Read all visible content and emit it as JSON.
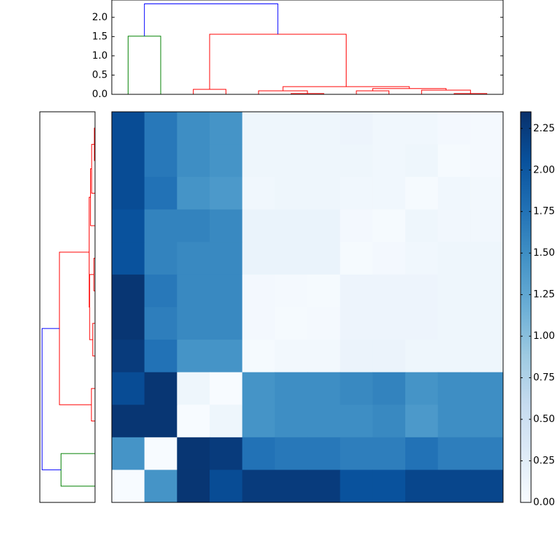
{
  "chart_data": [
    {
      "type": "dendrogram",
      "orientation": "top",
      "xlim": [
        0,
        120
      ],
      "ylim": [
        0,
        2.45
      ],
      "yticks": [
        {
          "value": 0,
          "label": "0.0"
        },
        {
          "value": 0.5,
          "label": "0.5"
        },
        {
          "value": 1,
          "label": "1.0"
        },
        {
          "value": 1.5,
          "label": "1.5"
        },
        {
          "value": 2,
          "label": "2.0"
        }
      ],
      "icoord": [
        [
          5,
          5,
          15,
          15
        ],
        [
          25,
          25,
          35,
          35
        ],
        [
          55,
          55,
          65,
          65
        ],
        [
          45,
          45,
          60,
          60
        ],
        [
          75,
          75,
          85,
          85
        ],
        [
          105,
          105,
          115,
          115
        ],
        [
          95,
          95,
          110,
          110
        ],
        [
          80,
          80,
          102.5,
          102.5
        ],
        [
          52.5,
          52.5,
          91.25,
          91.25
        ],
        [
          30,
          30,
          71.875,
          71.875
        ],
        [
          10,
          10,
          50.9375,
          50.9375
        ]
      ],
      "dcoord": [
        [
          0,
          1.51,
          1.51,
          0
        ],
        [
          0,
          0.13,
          0.13,
          0
        ],
        [
          0,
          0.02,
          0.02,
          0
        ],
        [
          0,
          0.09,
          0.09,
          0.02
        ],
        [
          0,
          0.09,
          0.09,
          0
        ],
        [
          0,
          0.02,
          0.02,
          0
        ],
        [
          0,
          0.11,
          0.11,
          0.02
        ],
        [
          0.09,
          0.15,
          0.15,
          0.11
        ],
        [
          0.09,
          0.2,
          0.2,
          0.15
        ],
        [
          0.13,
          1.56,
          1.56,
          0.2
        ],
        [
          1.51,
          2.35,
          2.35,
          1.56
        ]
      ],
      "link_colors": [
        "#008000",
        "#ff0000",
        "#ff0000",
        "#ff0000",
        "#ff0000",
        "#ff0000",
        "#ff0000",
        "#ff0000",
        "#ff0000",
        "#ff0000",
        "#0000ff"
      ]
    },
    {
      "type": "dendrogram",
      "orientation": "left",
      "ylim": [
        0,
        120
      ],
      "xlim": [
        2.45,
        0
      ],
      "icoord": [
        [
          5,
          5,
          15,
          15
        ],
        [
          25,
          25,
          35,
          35
        ],
        [
          45,
          45,
          55,
          55
        ],
        [
          65,
          65,
          75,
          75
        ],
        [
          50,
          50,
          70,
          70
        ],
        [
          105,
          105,
          115,
          115
        ],
        [
          95,
          95,
          110,
          110
        ],
        [
          85,
          85,
          102.5,
          102.5
        ],
        [
          60,
          60,
          93.75,
          93.75
        ],
        [
          30,
          30,
          76.875,
          76.875
        ],
        [
          10,
          10,
          53.4375,
          53.4375
        ]
      ],
      "dcoord": [
        [
          0,
          1.51,
          1.51,
          0
        ],
        [
          0,
          0.16,
          0.16,
          0
        ],
        [
          0,
          0.1,
          0.1,
          0
        ],
        [
          0,
          0.05,
          0.05,
          0
        ],
        [
          0.1,
          0.24,
          0.24,
          0.05
        ],
        [
          0,
          0.03,
          0.03,
          0
        ],
        [
          0,
          0.15,
          0.15,
          0.03
        ],
        [
          0,
          0.2,
          0.2,
          0.15
        ],
        [
          0.24,
          0.26,
          0.26,
          0.2
        ],
        [
          0.16,
          1.58,
          1.58,
          0.26
        ],
        [
          1.51,
          2.35,
          2.35,
          1.58
        ]
      ],
      "link_colors": [
        "#008000",
        "#ff0000",
        "#ff0000",
        "#ff0000",
        "#ff0000",
        "#ff0000",
        "#ff0000",
        "#ff0000",
        "#ff0000",
        "#ff0000",
        "#0000ff"
      ]
    },
    {
      "type": "heatmap",
      "clim": [
        0,
        2.35
      ],
      "colormap": [
        "#f7fbff",
        "#deebf7",
        "#c6dbef",
        "#9ecae1",
        "#6baed6",
        "#4292c6",
        "#2171b5",
        "#08519c",
        "#08306b"
      ],
      "colorbar_ticks": [
        {
          "value": 0,
          "label": "0.00"
        },
        {
          "value": 0.25,
          "label": "0.25"
        },
        {
          "value": 0.5,
          "label": "0.50"
        },
        {
          "value": 0.75,
          "label": "0.75"
        },
        {
          "value": 1,
          "label": "1.00"
        },
        {
          "value": 1.25,
          "label": "1.25"
        },
        {
          "value": 1.5,
          "label": "1.50"
        },
        {
          "value": 1.75,
          "label": "1.75"
        },
        {
          "value": 2,
          "label": "2.00"
        },
        {
          "value": 2.25,
          "label": "2.25"
        }
      ],
      "values": [
        [
          2.1,
          1.7,
          1.5,
          1.45,
          0.1,
          0.1,
          0.1,
          0.12,
          0.08,
          0.08,
          0.05,
          0.03
        ],
        [
          2.1,
          1.7,
          1.5,
          1.45,
          0.1,
          0.1,
          0.1,
          0.1,
          0.08,
          0.1,
          0.02,
          0.04
        ],
        [
          2.1,
          1.75,
          1.45,
          1.4,
          0.08,
          0.1,
          0.1,
          0.08,
          0.08,
          0.02,
          0.08,
          0.06
        ],
        [
          2.05,
          1.6,
          1.6,
          1.55,
          0.15,
          0.15,
          0.15,
          0.05,
          0.02,
          0.1,
          0.07,
          0.07
        ],
        [
          2.05,
          1.6,
          1.55,
          1.55,
          0.15,
          0.15,
          0.15,
          0.02,
          0.05,
          0.08,
          0.1,
          0.1
        ],
        [
          2.3,
          1.7,
          1.55,
          1.55,
          0.05,
          0.03,
          0.02,
          0.12,
          0.12,
          0.12,
          0.1,
          0.1
        ],
        [
          2.3,
          1.65,
          1.55,
          1.55,
          0.05,
          0.02,
          0.04,
          0.12,
          0.12,
          0.12,
          0.1,
          0.1
        ],
        [
          2.25,
          1.75,
          1.45,
          1.45,
          0.02,
          0.06,
          0.06,
          0.14,
          0.14,
          0.1,
          0.1,
          0.1
        ],
        [
          2.1,
          2.3,
          0.1,
          0,
          1.45,
          1.5,
          1.5,
          1.55,
          1.6,
          1.45,
          1.5,
          1.5
        ],
        [
          2.3,
          2.3,
          0,
          0.1,
          1.45,
          1.5,
          1.5,
          1.5,
          1.55,
          1.4,
          1.5,
          1.5
        ],
        [
          1.45,
          0,
          2.3,
          2.25,
          1.75,
          1.7,
          1.7,
          1.65,
          1.65,
          1.75,
          1.65,
          1.65
        ],
        [
          0,
          1.45,
          2.3,
          2.1,
          2.25,
          2.25,
          2.25,
          2.05,
          2.05,
          2.15,
          2.15,
          2.15
        ]
      ]
    }
  ]
}
